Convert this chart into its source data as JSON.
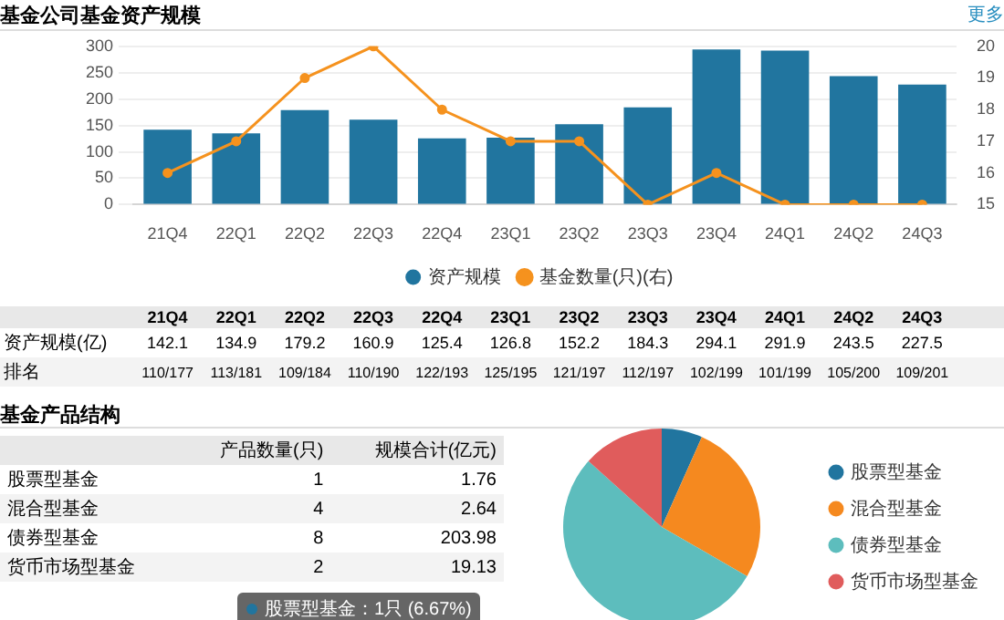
{
  "chart_data": [
    {
      "type": "bar",
      "title": "基金公司基金资产规模",
      "categories": [
        "21Q4",
        "22Q1",
        "22Q2",
        "22Q3",
        "22Q4",
        "23Q1",
        "23Q2",
        "23Q3",
        "23Q4",
        "24Q1",
        "24Q2",
        "24Q3"
      ],
      "series": [
        {
          "name": "资产规模",
          "color": "#21759f",
          "values": [
            142.1,
            134.9,
            179.2,
            160.9,
            125.4,
            126.8,
            152.2,
            184.3,
            294.1,
            291.9,
            243.5,
            227.5
          ],
          "value_labels": [
            "142.1",
            "134.9",
            "179.2",
            "160.9",
            "125.4",
            "126.8",
            "152.2",
            "184.3",
            "294.1",
            "291.9",
            "243.5",
            "227.5"
          ]
        },
        {
          "name": "基金数量(只)(右)",
          "type": "line",
          "axis": "y2",
          "color": "#f5921e",
          "values": [
            16,
            17,
            19,
            20,
            18,
            17,
            17,
            15,
            16,
            15,
            15,
            15
          ]
        }
      ],
      "ylim": [
        0,
        300
      ],
      "yticks": [
        0,
        50,
        100,
        150,
        200,
        250,
        300
      ],
      "y2lim": [
        15,
        20
      ],
      "y2ticks": [
        15,
        16,
        17,
        18,
        19,
        20
      ],
      "grid": "y",
      "legend": "bottom",
      "marker": "circle",
      "annotations": [
        "更多",
        "资产规模(亿)",
        "排名",
        "110/177",
        "113/181",
        "109/184",
        "110/190",
        "122/193",
        "125/195",
        "121/197",
        "112/197",
        "102/199",
        "101/199",
        "105/200",
        "109/201"
      ]
    },
    {
      "type": "pie",
      "title": "基金产品结构",
      "categories": [
        "股票型基金",
        "混合型基金",
        "债券型基金",
        "货币市场型基金"
      ],
      "values": [
        1,
        4,
        8,
        2
      ],
      "colors": [
        "#21759f",
        "#f5891f",
        "#5dbdbd",
        "#e05c5c"
      ],
      "legend": "right",
      "data_labels": true,
      "annotations": [
        "产品数量(只)",
        "规模合计(亿元)",
        "1.76",
        "2.64",
        "203.98",
        "19.13",
        "股票型基金：1只 (6.67%)"
      ]
    }
  ]
}
